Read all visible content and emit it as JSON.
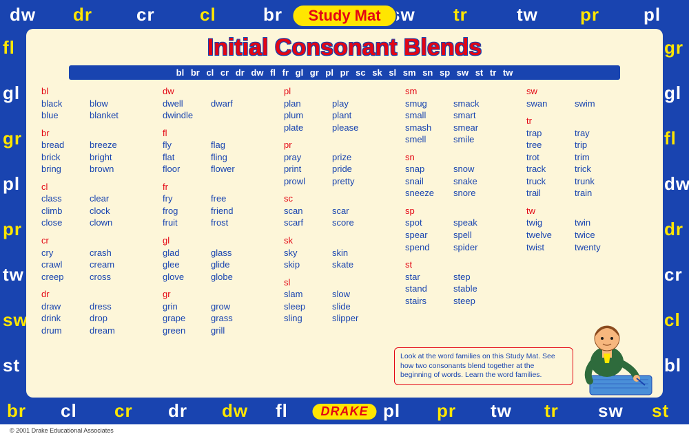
{
  "colors": {
    "border_bg": "#1944b0",
    "panel_bg": "#fdf6d9",
    "title_red": "#e30613",
    "text_blue": "#1944b0",
    "accent_yellow": "#ffe600",
    "white": "#ffffff"
  },
  "pill_title": "Study Mat",
  "brand": "DRAKE",
  "main_title": "Initial Consonant Blends",
  "blend_bar": "bl  br  cl  cr  dr  dw  fl  fr  gl  gr  pl  pr  sc  sk  sl  sm  sn  sp  sw  st  tr  tw",
  "border_top": [
    {
      "t": "dw",
      "c": "white"
    },
    {
      "t": "dr",
      "c": "yellow-t"
    },
    {
      "t": "cr",
      "c": "white"
    },
    {
      "t": "cl",
      "c": "yellow-t"
    },
    {
      "t": "br",
      "c": "white"
    },
    {
      "t": "",
      "c": ""
    },
    {
      "t": "sw",
      "c": "white"
    },
    {
      "t": "tr",
      "c": "yellow-t"
    },
    {
      "t": "tw",
      "c": "white"
    },
    {
      "t": "pr",
      "c": "yellow-t"
    },
    {
      "t": "pl",
      "c": "white"
    }
  ],
  "border_bottom": [
    {
      "t": "br",
      "c": "yellow-t"
    },
    {
      "t": "cl",
      "c": "white"
    },
    {
      "t": "cr",
      "c": "yellow-t"
    },
    {
      "t": "dr",
      "c": "white"
    },
    {
      "t": "dw",
      "c": "yellow-t"
    },
    {
      "t": "fl",
      "c": "white"
    },
    {
      "t": "",
      "c": ""
    },
    {
      "t": "pl",
      "c": "white"
    },
    {
      "t": "pr",
      "c": "yellow-t"
    },
    {
      "t": "tw",
      "c": "white"
    },
    {
      "t": "tr",
      "c": "yellow-t"
    },
    {
      "t": "sw",
      "c": "white"
    },
    {
      "t": "st",
      "c": "yellow-t"
    }
  ],
  "border_left": [
    {
      "t": "fl",
      "c": "yellow-t"
    },
    {
      "t": "gl",
      "c": "white"
    },
    {
      "t": "gr",
      "c": "yellow-t"
    },
    {
      "t": "pl",
      "c": "white"
    },
    {
      "t": "pr",
      "c": "yellow-t"
    },
    {
      "t": "tw",
      "c": "white"
    },
    {
      "t": "sw",
      "c": "yellow-t"
    },
    {
      "t": "st",
      "c": "white"
    }
  ],
  "border_right": [
    {
      "t": "gr",
      "c": "yellow-t"
    },
    {
      "t": "gl",
      "c": "white"
    },
    {
      "t": "fl",
      "c": "yellow-t"
    },
    {
      "t": "dw",
      "c": "white"
    },
    {
      "t": "dr",
      "c": "yellow-t"
    },
    {
      "t": "cr",
      "c": "white"
    },
    {
      "t": "cl",
      "c": "yellow-t"
    },
    {
      "t": "bl",
      "c": "white"
    }
  ],
  "columns": [
    [
      {
        "head": "bl",
        "rows": [
          [
            "black",
            "blow"
          ],
          [
            "blue",
            "blanket"
          ]
        ]
      },
      {
        "head": "br",
        "rows": [
          [
            "bread",
            "breeze"
          ],
          [
            "brick",
            "bright"
          ],
          [
            "bring",
            "brown"
          ]
        ]
      },
      {
        "head": "cl",
        "rows": [
          [
            "class",
            "clear"
          ],
          [
            "climb",
            "clock"
          ],
          [
            "close",
            "clown"
          ]
        ]
      },
      {
        "head": "cr",
        "rows": [
          [
            "cry",
            "crash"
          ],
          [
            "crawl",
            "cream"
          ],
          [
            "creep",
            "cross"
          ]
        ]
      },
      {
        "head": "dr",
        "rows": [
          [
            "draw",
            "dress"
          ],
          [
            "drink",
            "drop"
          ],
          [
            "drum",
            "dream"
          ]
        ]
      }
    ],
    [
      {
        "head": "dw",
        "rows": [
          [
            "dwell",
            "dwarf"
          ],
          [
            "dwindle",
            ""
          ]
        ]
      },
      {
        "head": "fl",
        "rows": [
          [
            "fly",
            "flag"
          ],
          [
            "flat",
            "fling"
          ],
          [
            "floor",
            "flower"
          ]
        ]
      },
      {
        "head": "fr",
        "rows": [
          [
            "fry",
            "free"
          ],
          [
            "frog",
            "friend"
          ],
          [
            "fruit",
            "frost"
          ]
        ]
      },
      {
        "head": "gl",
        "rows": [
          [
            "glad",
            "glass"
          ],
          [
            "glee",
            "glide"
          ],
          [
            "glove",
            "globe"
          ]
        ]
      },
      {
        "head": "gr",
        "rows": [
          [
            "grin",
            "grow"
          ],
          [
            "grape",
            "grass"
          ],
          [
            "green",
            "grill"
          ]
        ]
      }
    ],
    [
      {
        "head": "pl",
        "rows": [
          [
            "plan",
            "play"
          ],
          [
            "plum",
            "plant"
          ],
          [
            "plate",
            "please"
          ]
        ]
      },
      {
        "head": "pr",
        "rows": [
          [
            "pray",
            "prize"
          ],
          [
            "print",
            "pride"
          ],
          [
            "prowl",
            "pretty"
          ]
        ]
      },
      {
        "head": "sc",
        "rows": [
          [
            "scan",
            "scar"
          ],
          [
            "scarf",
            "score"
          ]
        ]
      },
      {
        "head": "sk",
        "rows": [
          [
            "sky",
            "skin"
          ],
          [
            "skip",
            "skate"
          ]
        ]
      },
      {
        "head": "sl",
        "rows": [
          [
            "slam",
            "slow"
          ],
          [
            "sleep",
            "slide"
          ],
          [
            "sling",
            "slipper"
          ]
        ]
      }
    ],
    [
      {
        "head": "sm",
        "rows": [
          [
            "smug",
            "smack"
          ],
          [
            "small",
            "smart"
          ],
          [
            "smash",
            "smear"
          ],
          [
            "smell",
            "smile"
          ]
        ]
      },
      {
        "head": "sn",
        "rows": [
          [
            "snap",
            "snow"
          ],
          [
            "snail",
            "snake"
          ],
          [
            "sneeze",
            "snore"
          ]
        ]
      },
      {
        "head": "sp",
        "rows": [
          [
            "spot",
            "speak"
          ],
          [
            "spear",
            "spell"
          ],
          [
            "spend",
            "spider"
          ]
        ]
      },
      {
        "head": "st",
        "rows": [
          [
            "star",
            "step"
          ],
          [
            "stand",
            "stable"
          ],
          [
            "stairs",
            "steep"
          ]
        ]
      }
    ],
    [
      {
        "head": "sw",
        "rows": [
          [
            "swan",
            "swim"
          ]
        ]
      },
      {
        "head": "tr",
        "rows": [
          [
            "trap",
            "tray"
          ],
          [
            "tree",
            "trip"
          ],
          [
            "trot",
            "trim"
          ],
          [
            "track",
            "trick"
          ],
          [
            "truck",
            "trunk"
          ],
          [
            "trail",
            "train"
          ]
        ]
      },
      {
        "head": "tw",
        "rows": [
          [
            "twig",
            "twin"
          ],
          [
            "twelve",
            "twice"
          ],
          [
            "twist",
            "twenty"
          ]
        ]
      }
    ]
  ],
  "callout": "Look at the word families on this Study Mat. See how two consonants blend together at the beginning of words. Learn the word families.",
  "copyright": "© 2001 Drake Educational Associates"
}
